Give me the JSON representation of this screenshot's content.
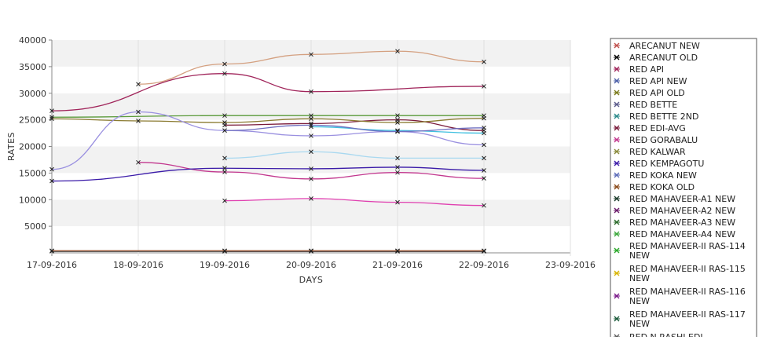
{
  "chart_data": {
    "type": "line",
    "title": "",
    "xlabel": "DAYS",
    "ylabel": "RATES",
    "x": [
      "17-09-2016",
      "18-09-2016",
      "19-09-2016",
      "20-09-2016",
      "21-09-2016",
      "22-09-2016"
    ],
    "x_ticks": [
      "17-09-2016",
      "18-09-2016",
      "19-09-2016",
      "20-09-2016",
      "21-09-2016",
      "22-09-2016",
      "23-09-2016"
    ],
    "y_ticks": [
      "5000",
      "10000",
      "15000",
      "20000",
      "25000",
      "30000",
      "35000",
      "40000"
    ],
    "ylim": [
      0,
      40000
    ],
    "grid": "alternating horizontal bands",
    "legend_position": "right",
    "series": [
      {
        "name": "ARECANUT NEW",
        "color": "#c0504d",
        "values": [
          null,
          null,
          300,
          300,
          300,
          300
        ]
      },
      {
        "name": "ARECANUT OLD",
        "color": "#000000",
        "values": [
          300,
          null,
          300,
          300,
          300,
          300
        ]
      },
      {
        "name": "RED API",
        "color": "#a0245a",
        "values": [
          26700,
          null,
          33700,
          30300,
          null,
          31300
        ]
      },
      {
        "name": "RED API NEW",
        "color": "#4b5fa8",
        "values": [
          null,
          null,
          null,
          null,
          null,
          null
        ]
      },
      {
        "name": "RED API OLD",
        "color": "#7a7a1a",
        "values": [
          null,
          null,
          null,
          null,
          null,
          null
        ]
      },
      {
        "name": "RED BETTE",
        "color": "#5a5a8a",
        "values": [
          null,
          null,
          null,
          null,
          null,
          null
        ]
      },
      {
        "name": "RED BETTE 2ND",
        "color": "#2a8a8a",
        "values": [
          null,
          null,
          null,
          null,
          null,
          null
        ]
      },
      {
        "name": "RED EDI-AVG",
        "color": "#7a1a3a",
        "values": [
          null,
          null,
          24000,
          24300,
          25000,
          23000
        ]
      },
      {
        "name": "RED GORABALU",
        "color": "#c2378e",
        "values": [
          null,
          17000,
          15200,
          13900,
          15100,
          14000
        ]
      },
      {
        "name": "RED KALWAR",
        "color": "#8a8a3a",
        "values": [
          null,
          null,
          null,
          null,
          null,
          null
        ]
      },
      {
        "name": "RED KEMPAGOTU",
        "color": "#3a1aa8",
        "values": [
          13500,
          null,
          15900,
          15800,
          16100,
          15500
        ]
      },
      {
        "name": "RED KOKA NEW",
        "color": "#5a6ab8",
        "values": [
          null,
          null,
          null,
          null,
          null,
          null
        ]
      },
      {
        "name": "RED KOKA OLD",
        "color": "#8a4a1a",
        "values": [
          null,
          null,
          null,
          null,
          null,
          null
        ]
      },
      {
        "name": "RED MAHAVEER-A1 NEW",
        "color": "#1a3a2a",
        "values": [
          null,
          null,
          null,
          null,
          null,
          null
        ]
      },
      {
        "name": "RED MAHAVEER-A2 NEW",
        "color": "#6a1a6a",
        "values": [
          null,
          null,
          null,
          null,
          null,
          null
        ]
      },
      {
        "name": "RED MAHAVEER-A3 NEW",
        "color": "#2a6a2a",
        "values": [
          null,
          null,
          null,
          null,
          null,
          null
        ]
      },
      {
        "name": "RED MAHAVEER-A4 NEW",
        "color": "#3aa83a",
        "values": [
          null,
          null,
          null,
          null,
          null,
          null
        ]
      },
      {
        "name": "RED MAHAVEER-II RAS-114 NEW",
        "color": "#2aa82a",
        "values": [
          null,
          null,
          null,
          null,
          null,
          null
        ]
      },
      {
        "name": "RED MAHAVEER-II RAS-115 NEW",
        "color": "#d8b400",
        "values": [
          null,
          null,
          null,
          null,
          null,
          null
        ]
      },
      {
        "name": "RED MAHAVEER-II RAS-116 NEW",
        "color": "#7a1a8a",
        "values": [
          null,
          null,
          null,
          null,
          null,
          null
        ]
      },
      {
        "name": "RED MAHAVEER-II RAS-117 NEW",
        "color": "#1a5a3a",
        "values": [
          null,
          null,
          null,
          null,
          null,
          null
        ]
      },
      {
        "name": "RED N RASHI EDI",
        "color": "#5a5a5a",
        "values": [
          null,
          null,
          null,
          null,
          null,
          null
        ]
      },
      {
        "name": "",
        "color": "#d4a080",
        "values": [
          null,
          31700,
          35500,
          37300,
          37900,
          35900
        ]
      },
      {
        "name": "",
        "color": "#5a9a3a",
        "values": [
          25500,
          null,
          25800,
          25800,
          25800,
          25800
        ]
      },
      {
        "name": "",
        "color": "#8a7a30",
        "values": [
          25200,
          24800,
          24500,
          25200,
          24500,
          25300
        ]
      },
      {
        "name": "",
        "color": "#9a90e0",
        "values": [
          15700,
          26500,
          23000,
          22000,
          22800,
          20300
        ]
      },
      {
        "name": "",
        "color": "#40c0e0",
        "values": [
          null,
          null,
          null,
          23700,
          23000,
          22500
        ]
      },
      {
        "name": "",
        "color": "#a8d8f0",
        "values": [
          null,
          null,
          17800,
          19000,
          17800,
          17800
        ]
      },
      {
        "name": "",
        "color": "#e040b0",
        "values": [
          null,
          null,
          9800,
          10200,
          9500,
          8900
        ]
      },
      {
        "name": "",
        "color": "#7070c0",
        "values": [
          null,
          null,
          23000,
          24000,
          22800,
          23500
        ]
      },
      {
        "name": "",
        "color": "#a06040",
        "values": [
          400,
          null,
          400,
          400,
          400,
          400
        ]
      }
    ]
  }
}
